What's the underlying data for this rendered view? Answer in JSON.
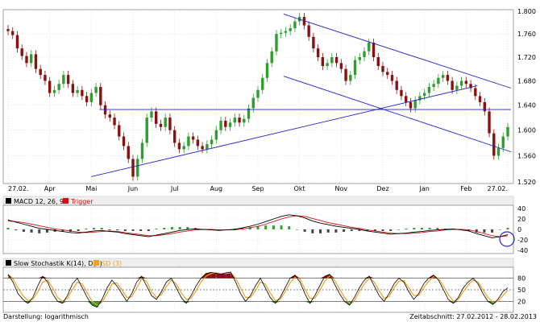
{
  "colors": {
    "up": "#2f9e2f",
    "down": "#8b1111",
    "trendline": "#2222cc",
    "macd": "#000000",
    "trigger": "#d01010",
    "stoch_k": "#000000",
    "stoch_d": "#f0a020",
    "stoch_hi_fill": "#8b1111",
    "stoch_lo_fill": "#2f9e2f",
    "grid": "#d8d8d8",
    "panel_header": "#eeeeee",
    "circle": "#2222cc"
  },
  "chart_data": [
    {
      "type": "candlestick",
      "scale": "logarithmic",
      "x_tick_labels": [
        "27.02.",
        "Apr",
        "Mai",
        "Jun",
        "Jul",
        "Aug",
        "Sep",
        "Okt",
        "Nov",
        "Dez",
        "Jan",
        "Feb",
        "27.02."
      ],
      "y_tick_labels": [
        "1.800",
        "1.760",
        "1.720",
        "1.680",
        "1.640",
        "1.600",
        "1.560",
        "1.520"
      ],
      "ylim": [
        1.52,
        1.8
      ],
      "close_series": [
        1.765,
        1.758,
        1.735,
        1.722,
        1.71,
        1.725,
        1.7,
        1.69,
        1.68,
        1.66,
        1.665,
        1.675,
        1.69,
        1.675,
        1.66,
        1.665,
        1.655,
        1.645,
        1.66,
        1.67,
        1.64,
        1.625,
        1.62,
        1.608,
        1.59,
        1.575,
        1.555,
        1.528,
        1.555,
        1.58,
        1.62,
        1.63,
        1.61,
        1.605,
        1.62,
        1.6,
        1.58,
        1.57,
        1.575,
        1.59,
        1.585,
        1.575,
        1.57,
        1.578,
        1.585,
        1.6,
        1.615,
        1.605,
        1.612,
        1.62,
        1.612,
        1.618,
        1.635,
        1.652,
        1.665,
        1.685,
        1.71,
        1.73,
        1.76,
        1.762,
        1.765,
        1.77,
        1.782,
        1.79,
        1.775,
        1.755,
        1.735,
        1.72,
        1.705,
        1.71,
        1.72,
        1.71,
        1.7,
        1.68,
        1.69,
        1.715,
        1.72,
        1.73,
        1.745,
        1.72,
        1.705,
        1.695,
        1.69,
        1.68,
        1.665,
        1.655,
        1.645,
        1.635,
        1.648,
        1.655,
        1.66,
        1.67,
        1.675,
        1.685,
        1.69,
        1.68,
        1.665,
        1.672,
        1.68,
        1.675,
        1.668,
        1.655,
        1.645,
        1.63,
        1.595,
        1.56,
        1.572,
        1.59,
        1.605
      ],
      "trendlines": [
        {
          "name": "support-up",
          "points": [
            [
              "Mai",
              1.528
            ],
            [
              "Feb",
              1.672
            ]
          ]
        },
        {
          "name": "resistance-horizontal",
          "points": [
            [
              "Mai",
              1.633
            ],
            [
              "27.02.",
              1.633
            ]
          ]
        },
        {
          "name": "channel-upper",
          "points": [
            [
              "Sep/Okt",
              1.795
            ],
            [
              "27.02.",
              1.668
            ]
          ]
        },
        {
          "name": "channel-lower",
          "points": [
            [
              "Sep/Okt",
              1.688
            ],
            [
              "27.02.",
              1.566
            ]
          ]
        }
      ]
    },
    {
      "type": "line",
      "title": "MACD 12, 26, 9",
      "series_names": [
        "MACD 12, 26, 9",
        "Trigger"
      ],
      "y_tick_labels": [
        "40",
        "20",
        "0",
        "-20",
        "-40"
      ],
      "ylim": [
        -40,
        40
      ],
      "macd": [
        18,
        14,
        10,
        6,
        2,
        0,
        -2,
        -4,
        -6,
        -7,
        -5,
        -3,
        -2,
        -4,
        -5,
        -8,
        -10,
        -12,
        -14,
        -11,
        -8,
        -5,
        -2,
        0,
        1,
        0,
        -1,
        -2,
        -1,
        0,
        3,
        6,
        10,
        15,
        20,
        25,
        28,
        26,
        22,
        16,
        12,
        9,
        6,
        4,
        2,
        0,
        -3,
        -5,
        -7,
        -9,
        -8,
        -7,
        -5,
        -4,
        -2,
        -1,
        0,
        1,
        -1,
        -3,
        -8,
        -12,
        -16,
        -14,
        -10
      ],
      "trigger": [
        16,
        15,
        13,
        10,
        7,
        4,
        1,
        -1,
        -3,
        -5,
        -6,
        -5,
        -4,
        -3,
        -4,
        -6,
        -8,
        -10,
        -12,
        -12,
        -10,
        -8,
        -5,
        -3,
        -1,
        0,
        0,
        -1,
        -1,
        -1,
        1,
        3,
        6,
        10,
        15,
        20,
        24,
        26,
        25,
        21,
        17,
        13,
        10,
        7,
        4,
        2,
        -1,
        -3,
        -5,
        -7,
        -8,
        -8,
        -7,
        -6,
        -4,
        -3,
        -1,
        0,
        0,
        -1,
        -4,
        -8,
        -12,
        -14,
        -12
      ]
    },
    {
      "type": "line",
      "title": "Slow Stochastik K(14), D(3)",
      "series_names": [
        "Slow Stochastik K(14), D(3)",
        "SD (3)"
      ],
      "y_tick_labels": [
        "80",
        "50",
        "20"
      ],
      "ylim": [
        0,
        100
      ],
      "k": [
        90,
        70,
        40,
        25,
        15,
        30,
        60,
        85,
        70,
        40,
        20,
        15,
        35,
        65,
        80,
        55,
        30,
        10,
        5,
        25,
        55,
        75,
        60,
        40,
        20,
        40,
        70,
        85,
        60,
        35,
        25,
        45,
        70,
        80,
        55,
        30,
        15,
        35,
        60,
        80,
        92,
        95,
        93,
        90,
        94,
        96,
        70,
        40,
        20,
        35,
        60,
        80,
        55,
        30,
        15,
        30,
        55,
        80,
        88,
        70,
        40,
        15,
        35,
        60,
        85,
        90,
        65,
        40,
        20,
        10,
        30,
        55,
        75,
        85,
        60,
        35,
        20,
        40,
        65,
        80,
        70,
        45,
        25,
        40,
        65,
        80,
        88,
        75,
        50,
        25,
        15,
        30,
        55,
        70,
        80,
        65,
        40,
        20,
        12,
        25,
        45,
        55
      ],
      "d": [
        85,
        78,
        55,
        35,
        22,
        25,
        45,
        70,
        75,
        55,
        30,
        20,
        28,
        50,
        70,
        65,
        42,
        20,
        10,
        18,
        40,
        65,
        68,
        50,
        30,
        32,
        55,
        78,
        72,
        45,
        30,
        38,
        58,
        75,
        65,
        42,
        25,
        28,
        48,
        70,
        85,
        92,
        94,
        92,
        92,
        94,
        80,
        55,
        30,
        30,
        48,
        70,
        65,
        42,
        22,
        25,
        45,
        68,
        82,
        78,
        52,
        28,
        28,
        48,
        72,
        86,
        75,
        52,
        30,
        15,
        22,
        45,
        65,
        80,
        70,
        48,
        28,
        32,
        55,
        72,
        74,
        55,
        35,
        35,
        55,
        72,
        84,
        80,
        60,
        38,
        20,
        25,
        45,
        62,
        75,
        70,
        50,
        30,
        18,
        20,
        35,
        48
      ]
    }
  ],
  "panels": {
    "macd": {
      "label": "MACD 12, 26, 9",
      "trigger_label": "Trigger"
    },
    "stoch": {
      "label": "Slow Stochastik K(14), D(3)",
      "d_label": "SD (3)"
    }
  },
  "footer": {
    "left": "Darstellung: logarithmisch",
    "right": "Zeitabschnitt: 27.02.2012 - 28.02.2013"
  }
}
